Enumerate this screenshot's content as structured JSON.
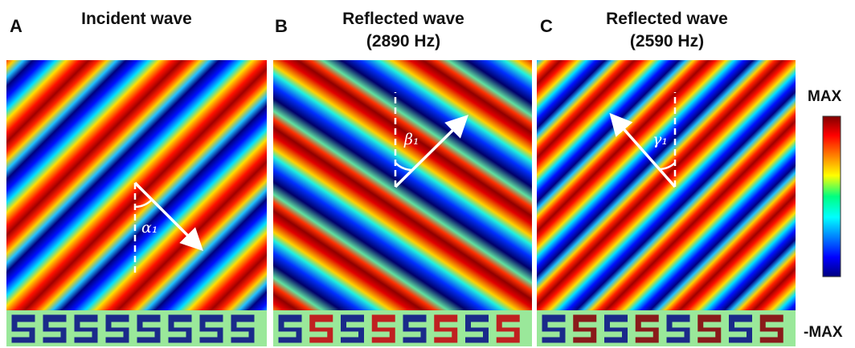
{
  "panels": [
    {
      "letter": "A",
      "title": [
        "Incident wave"
      ],
      "angle_label": "α₁"
    },
    {
      "letter": "B",
      "title": [
        "Reflected wave",
        "(2890 Hz)"
      ],
      "angle_label": "β₁"
    },
    {
      "letter": "C",
      "title": [
        "Reflected wave",
        "(2590 Hz)"
      ],
      "angle_label": "γ₁"
    }
  ],
  "colorbar": {
    "max_label": "MAX",
    "min_label": "-MAX"
  }
}
